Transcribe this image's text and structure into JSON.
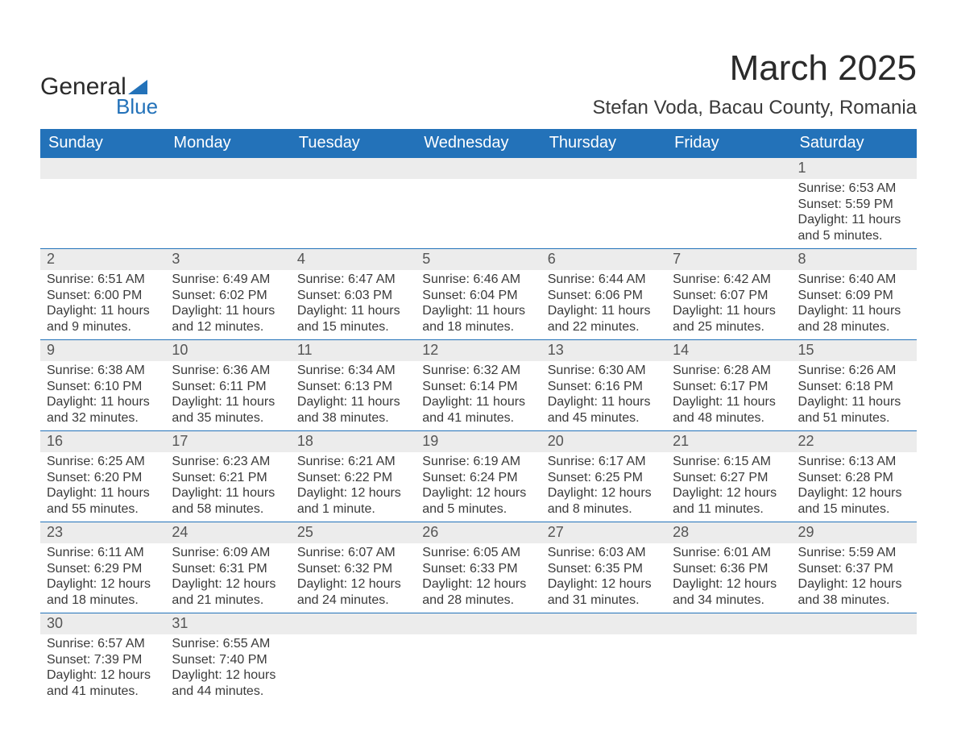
{
  "brand": {
    "word1": "General",
    "word2": "Blue",
    "accent_color": "#2372b9"
  },
  "title": "March 2025",
  "location": "Stefan Voda, Bacau County, Romania",
  "header_bg": "#2372b9",
  "header_fg": "#ffffff",
  "stripe_bg": "#ececec",
  "page_bg": "#ffffff",
  "text_color": "#3a3a3a",
  "columns": [
    "Sunday",
    "Monday",
    "Tuesday",
    "Wednesday",
    "Thursday",
    "Friday",
    "Saturday"
  ],
  "weeks": [
    [
      null,
      null,
      null,
      null,
      null,
      null,
      {
        "n": "1",
        "sr": "6:53 AM",
        "ss": "5:59 PM",
        "dl": "11 hours and 5 minutes."
      }
    ],
    [
      {
        "n": "2",
        "sr": "6:51 AM",
        "ss": "6:00 PM",
        "dl": "11 hours and 9 minutes."
      },
      {
        "n": "3",
        "sr": "6:49 AM",
        "ss": "6:02 PM",
        "dl": "11 hours and 12 minutes."
      },
      {
        "n": "4",
        "sr": "6:47 AM",
        "ss": "6:03 PM",
        "dl": "11 hours and 15 minutes."
      },
      {
        "n": "5",
        "sr": "6:46 AM",
        "ss": "6:04 PM",
        "dl": "11 hours and 18 minutes."
      },
      {
        "n": "6",
        "sr": "6:44 AM",
        "ss": "6:06 PM",
        "dl": "11 hours and 22 minutes."
      },
      {
        "n": "7",
        "sr": "6:42 AM",
        "ss": "6:07 PM",
        "dl": "11 hours and 25 minutes."
      },
      {
        "n": "8",
        "sr": "6:40 AM",
        "ss": "6:09 PM",
        "dl": "11 hours and 28 minutes."
      }
    ],
    [
      {
        "n": "9",
        "sr": "6:38 AM",
        "ss": "6:10 PM",
        "dl": "11 hours and 32 minutes."
      },
      {
        "n": "10",
        "sr": "6:36 AM",
        "ss": "6:11 PM",
        "dl": "11 hours and 35 minutes."
      },
      {
        "n": "11",
        "sr": "6:34 AM",
        "ss": "6:13 PM",
        "dl": "11 hours and 38 minutes."
      },
      {
        "n": "12",
        "sr": "6:32 AM",
        "ss": "6:14 PM",
        "dl": "11 hours and 41 minutes."
      },
      {
        "n": "13",
        "sr": "6:30 AM",
        "ss": "6:16 PM",
        "dl": "11 hours and 45 minutes."
      },
      {
        "n": "14",
        "sr": "6:28 AM",
        "ss": "6:17 PM",
        "dl": "11 hours and 48 minutes."
      },
      {
        "n": "15",
        "sr": "6:26 AM",
        "ss": "6:18 PM",
        "dl": "11 hours and 51 minutes."
      }
    ],
    [
      {
        "n": "16",
        "sr": "6:25 AM",
        "ss": "6:20 PM",
        "dl": "11 hours and 55 minutes."
      },
      {
        "n": "17",
        "sr": "6:23 AM",
        "ss": "6:21 PM",
        "dl": "11 hours and 58 minutes."
      },
      {
        "n": "18",
        "sr": "6:21 AM",
        "ss": "6:22 PM",
        "dl": "12 hours and 1 minute."
      },
      {
        "n": "19",
        "sr": "6:19 AM",
        "ss": "6:24 PM",
        "dl": "12 hours and 5 minutes."
      },
      {
        "n": "20",
        "sr": "6:17 AM",
        "ss": "6:25 PM",
        "dl": "12 hours and 8 minutes."
      },
      {
        "n": "21",
        "sr": "6:15 AM",
        "ss": "6:27 PM",
        "dl": "12 hours and 11 minutes."
      },
      {
        "n": "22",
        "sr": "6:13 AM",
        "ss": "6:28 PM",
        "dl": "12 hours and 15 minutes."
      }
    ],
    [
      {
        "n": "23",
        "sr": "6:11 AM",
        "ss": "6:29 PM",
        "dl": "12 hours and 18 minutes."
      },
      {
        "n": "24",
        "sr": "6:09 AM",
        "ss": "6:31 PM",
        "dl": "12 hours and 21 minutes."
      },
      {
        "n": "25",
        "sr": "6:07 AM",
        "ss": "6:32 PM",
        "dl": "12 hours and 24 minutes."
      },
      {
        "n": "26",
        "sr": "6:05 AM",
        "ss": "6:33 PM",
        "dl": "12 hours and 28 minutes."
      },
      {
        "n": "27",
        "sr": "6:03 AM",
        "ss": "6:35 PM",
        "dl": "12 hours and 31 minutes."
      },
      {
        "n": "28",
        "sr": "6:01 AM",
        "ss": "6:36 PM",
        "dl": "12 hours and 34 minutes."
      },
      {
        "n": "29",
        "sr": "5:59 AM",
        "ss": "6:37 PM",
        "dl": "12 hours and 38 minutes."
      }
    ],
    [
      {
        "n": "30",
        "sr": "6:57 AM",
        "ss": "7:39 PM",
        "dl": "12 hours and 41 minutes."
      },
      {
        "n": "31",
        "sr": "6:55 AM",
        "ss": "7:40 PM",
        "dl": "12 hours and 44 minutes."
      },
      null,
      null,
      null,
      null,
      null
    ]
  ],
  "labels": {
    "sunrise": "Sunrise:",
    "sunset": "Sunset:",
    "daylight": "Daylight:"
  },
  "fonts": {
    "title_pt": 44,
    "location_pt": 24,
    "header_pt": 20,
    "daynum_pt": 18,
    "body_pt": 16
  }
}
